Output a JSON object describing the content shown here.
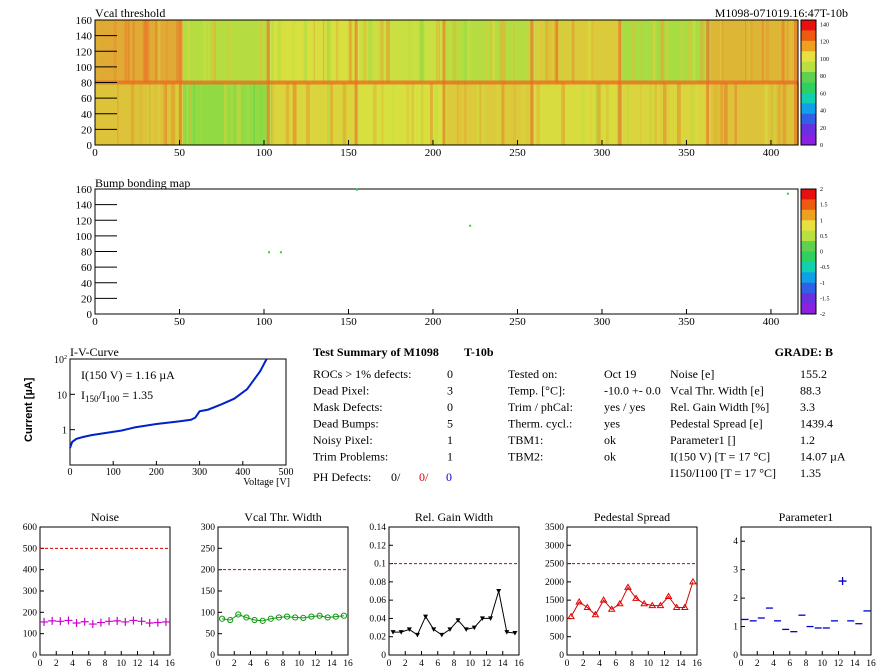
{
  "colors": {
    "map_low": "#7a1ee0",
    "map_mid": "#2ad04a",
    "map_high": "#e82010",
    "noise": "#cc00cc",
    "vcal": "#119911",
    "gain": "#000000",
    "pedestal": "#dd0000",
    "param": "#0000cc",
    "iv": "#0022cc",
    "limit": "#cc0000",
    "ph_red": "#dd0000",
    "ph_blue": "#0000cc"
  },
  "header": {
    "vcal_title": "Vcal threshold",
    "module_id": "M1098-071019.16:47T-10b",
    "bump_title": "Bump bonding map"
  },
  "summary": {
    "title": "Test Summary of M1098",
    "tag": "T-10b",
    "grade": "GRADE:  B",
    "left": [
      {
        "label": "ROCs > 1% defects:",
        "value": "0"
      },
      {
        "label": "Dead Pixel:",
        "value": "3"
      },
      {
        "label": "Mask Defects:",
        "value": "0"
      },
      {
        "label": "Dead Bumps:",
        "value": "5"
      },
      {
        "label": "Noisy Pixel:",
        "value": "1"
      },
      {
        "label": "Trim Problems:",
        "value": "1"
      }
    ],
    "ph": {
      "label": "PH Defects:",
      "v1": "0/",
      "v2": "0/",
      "v3": "0"
    },
    "mid": [
      {
        "label": "Tested on:",
        "value": "Oct 19"
      },
      {
        "label": "Temp. [°C]:",
        "value": "-10.0 +- 0.0"
      },
      {
        "label": "Trim / phCal:",
        "value": "yes / yes"
      },
      {
        "label": "Therm. cycl.:",
        "value": "yes"
      },
      {
        "label": "TBM1:",
        "value": "ok"
      },
      {
        "label": "TBM2:",
        "value": "ok"
      }
    ],
    "right": [
      {
        "label": "Noise [e]",
        "value": "155.2"
      },
      {
        "label": "Vcal Thr. Width [e]",
        "value": "88.3"
      },
      {
        "label": "Rel. Gain Width [%]",
        "value": "3.3"
      },
      {
        "label": "Pedestal Spread [e]",
        "value": "1439.4"
      },
      {
        "label": "Parameter1 []",
        "value": "1.2"
      },
      {
        "label": "I(150 V)  [T = 17 °C]",
        "value": "14.07 µA"
      },
      {
        "label": "I150/I100  [T = 17 °C]",
        "value": "1.35"
      }
    ]
  },
  "chart_data": [
    {
      "type": "heatmap",
      "title": "Vcal threshold",
      "xlim": [
        0,
        416
      ],
      "ylim": [
        0,
        160
      ],
      "xticks": [
        0,
        50,
        100,
        150,
        200,
        250,
        300,
        350,
        400
      ],
      "yticks": [
        0,
        20,
        40,
        60,
        80,
        100,
        120,
        140,
        160
      ],
      "zticks": [
        0,
        20,
        40,
        60,
        80,
        100,
        120,
        140
      ],
      "roc_mean_top": [
        118,
        100,
        105,
        103,
        100,
        110,
        98,
        115
      ],
      "roc_mean_bottom": [
        112,
        95,
        108,
        105,
        110,
        106,
        108,
        112
      ]
    },
    {
      "type": "heatmap",
      "title": "Bump bonding map",
      "xlim": [
        0,
        416
      ],
      "ylim": [
        0,
        160
      ],
      "xticks": [
        0,
        50,
        100,
        150,
        200,
        250,
        300,
        350,
        400
      ],
      "yticks": [
        0,
        20,
        40,
        60,
        80,
        100,
        120,
        140,
        160
      ],
      "zticks": [
        "2",
        "1.5",
        "1",
        "0.5",
        "0",
        "-0.5",
        "-1",
        "-1.5",
        "-2"
      ],
      "points": [
        [
          103,
          79
        ],
        [
          110,
          79
        ],
        [
          155,
          159
        ],
        [
          222,
          113
        ],
        [
          410,
          154
        ]
      ]
    },
    {
      "type": "line",
      "title": "I-V-Curve",
      "xlabel": "Voltage [V]",
      "ylabel": "Current [µA]",
      "log_y": true,
      "xlim": [
        0,
        500
      ],
      "ylim": [
        0.1,
        100
      ],
      "xticks": [
        0,
        100,
        200,
        300,
        400,
        500
      ],
      "annotations": [
        "I(150 V) = 1.16 µA",
        "I150/I100 =  1.35"
      ],
      "x": [
        0,
        5,
        15,
        30,
        50,
        80,
        120,
        150,
        200,
        250,
        280,
        290,
        300,
        320,
        350,
        380,
        410,
        440,
        455
      ],
      "y": [
        0.3,
        0.45,
        0.55,
        0.62,
        0.7,
        0.8,
        0.95,
        1.16,
        1.45,
        1.7,
        1.9,
        2.2,
        3.3,
        3.7,
        5.2,
        7.5,
        14,
        45,
        100
      ]
    },
    {
      "type": "scatter",
      "title": "Noise",
      "xlim": [
        0,
        16
      ],
      "ylim": [
        0,
        600
      ],
      "xticks": [
        0,
        2,
        4,
        6,
        8,
        10,
        12,
        14,
        16
      ],
      "yticks": [
        0,
        100,
        200,
        300,
        400,
        500,
        600
      ],
      "limit": 500,
      "x": [
        0,
        1,
        2,
        3,
        4,
        5,
        6,
        7,
        8,
        9,
        10,
        11,
        12,
        13,
        14,
        15
      ],
      "y": [
        155,
        160,
        158,
        162,
        150,
        156,
        145,
        152,
        158,
        160,
        155,
        162,
        158,
        150,
        152,
        155
      ]
    },
    {
      "type": "line",
      "title": "Vcal Thr. Width",
      "xlim": [
        0,
        16
      ],
      "ylim": [
        0,
        300
      ],
      "xticks": [
        0,
        2,
        4,
        6,
        8,
        10,
        12,
        14,
        16
      ],
      "yticks": [
        0,
        50,
        100,
        150,
        200,
        250,
        300
      ],
      "limit": 200,
      "x": [
        0,
        1,
        2,
        3,
        4,
        5,
        6,
        7,
        8,
        9,
        10,
        11,
        12,
        13,
        14,
        15
      ],
      "y": [
        85,
        82,
        95,
        88,
        82,
        80,
        85,
        88,
        90,
        88,
        87,
        90,
        92,
        88,
        90,
        92
      ]
    },
    {
      "type": "line",
      "title": "Rel. Gain Width",
      "xlim": [
        0,
        16
      ],
      "ylim": [
        0,
        0.14
      ],
      "xticks": [
        0,
        2,
        4,
        6,
        8,
        10,
        12,
        14,
        16
      ],
      "yticks": [
        "0",
        "0.02",
        "0.04",
        "0.06",
        "0.08",
        "0.1",
        "0.12",
        "0.14"
      ],
      "limit": 0.1,
      "x": [
        0,
        1,
        2,
        3,
        4,
        5,
        6,
        7,
        8,
        9,
        10,
        11,
        12,
        13,
        14,
        15
      ],
      "y": [
        0.025,
        0.025,
        0.028,
        0.022,
        0.042,
        0.028,
        0.022,
        0.028,
        0.038,
        0.028,
        0.03,
        0.04,
        0.04,
        0.07,
        0.025,
        0.024
      ]
    },
    {
      "type": "line",
      "title": "Pedestal Spread",
      "xlim": [
        0,
        16
      ],
      "ylim": [
        0,
        3500
      ],
      "xticks": [
        0,
        2,
        4,
        6,
        8,
        10,
        12,
        14,
        16
      ],
      "yticks": [
        0,
        500,
        1000,
        1500,
        2000,
        2500,
        3000,
        3500
      ],
      "limit": 2500,
      "x": [
        0,
        1,
        2,
        3,
        4,
        5,
        6,
        7,
        8,
        9,
        10,
        11,
        12,
        13,
        14,
        15
      ],
      "y": [
        1050,
        1450,
        1300,
        1100,
        1500,
        1250,
        1400,
        1850,
        1550,
        1400,
        1350,
        1350,
        1600,
        1300,
        1300,
        2000
      ]
    },
    {
      "type": "scatter",
      "title": "Parameter1",
      "xlim": [
        0,
        16
      ],
      "ylim": [
        0,
        4.5
      ],
      "xticks": [
        0,
        2,
        4,
        6,
        8,
        10,
        12,
        14,
        16
      ],
      "yticks": [
        0,
        1,
        2,
        3,
        4
      ],
      "x": [
        0,
        1,
        2,
        3,
        4,
        5,
        6,
        7,
        8,
        9,
        10,
        11,
        12,
        13,
        14,
        15
      ],
      "y": [
        1.25,
        1.2,
        1.3,
        1.65,
        1.2,
        0.9,
        0.82,
        1.4,
        1.0,
        0.95,
        0.95,
        1.2,
        2.6,
        1.2,
        1.1,
        1.55
      ]
    }
  ]
}
